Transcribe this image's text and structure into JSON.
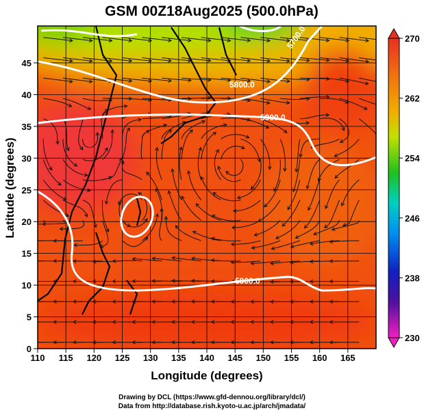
{
  "chart_data": {
    "type": "heatmap",
    "title": "GSM 00Z18Aug2025 (500.0hPa)",
    "xlabel": "Longitude (degrees)",
    "ylabel": "Latitude  (degrees)",
    "xlim": [
      110,
      170
    ],
    "ylim": [
      0,
      50
    ],
    "xticks": [
      "110",
      "115",
      "120",
      "125",
      "130",
      "135",
      "140",
      "145",
      "150",
      "155",
      "160",
      "165"
    ],
    "yticks": [
      "0",
      "5",
      "10",
      "15",
      "20",
      "25",
      "30",
      "35",
      "40",
      "45"
    ],
    "grid": true,
    "colorbar": {
      "min": 230,
      "max": 270,
      "ticks": [
        "270",
        "262",
        "254",
        "246",
        "238",
        "230"
      ]
    },
    "contour_labels": [
      "5700.0",
      "5800.0",
      "5900.0",
      "5900.0"
    ],
    "features": {
      "anticyclone_center": [
        145,
        29
      ],
      "cyclone_centers": [
        [
          127,
          22
        ],
        [
          119,
          33
        ]
      ]
    }
  },
  "credits": {
    "line1": "Drawing by DCL (https://www.gfd-dennou.org/library/dcl/)",
    "line2": "Data from http://database.rish.kyoto-u.ac.jp/arch/jmadata/"
  }
}
